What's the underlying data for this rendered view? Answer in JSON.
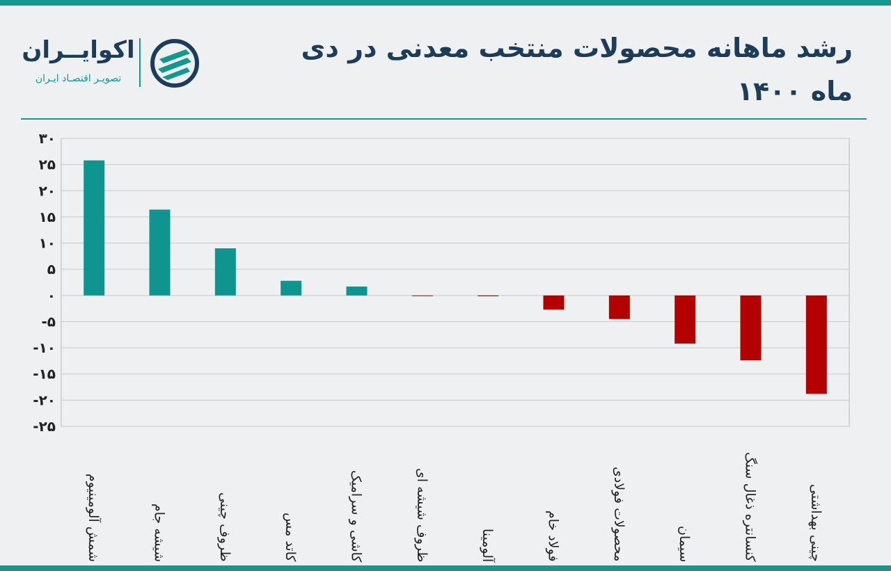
{
  "title": "رشد ماهانه محصولات منتخب معدنی در دی ماه ۱۴۰۰",
  "logo": {
    "name": "اکوایــران",
    "tagline": "تصویـر اقتصـاد ایـران"
  },
  "colors": {
    "positive": "#0f9490",
    "negative": "#b30000",
    "accent": "#12988f",
    "title": "#1d3c5a"
  },
  "chart_data": {
    "type": "bar",
    "title": "رشد ماهانه محصولات منتخب معدنی در دی ماه ۱۴۰۰",
    "categories": [
      "شمش آلومینیوم",
      "شیشه جام",
      "ظروف چینی",
      "کاتد مس",
      "کاشی و سرامیک",
      "ظروف شیشه ای",
      "آلومینا",
      "فولاد خام",
      "محصولات فولادی",
      "سیمان",
      "کنسانتره ذغال سنگ",
      "چینی بهداشتی"
    ],
    "values": [
      25.8,
      16.4,
      9.0,
      2.8,
      1.7,
      -0.05,
      -0.15,
      -2.7,
      -4.5,
      -9.2,
      -12.4,
      -18.8
    ],
    "ylim": [
      -25,
      30
    ],
    "yticks": [
      30,
      25,
      20,
      15,
      10,
      5,
      0,
      -5,
      -10,
      -15,
      -20,
      -25
    ],
    "ytick_labels": [
      "۳۰",
      "۲۵",
      "۲۰",
      "۱۵",
      "۱۰",
      "۵",
      "۰",
      "-۵",
      "-۱۰",
      "-۱۵",
      "-۲۰",
      "-۲۵"
    ],
    "grid": true,
    "xlabel": "",
    "ylabel": ""
  }
}
